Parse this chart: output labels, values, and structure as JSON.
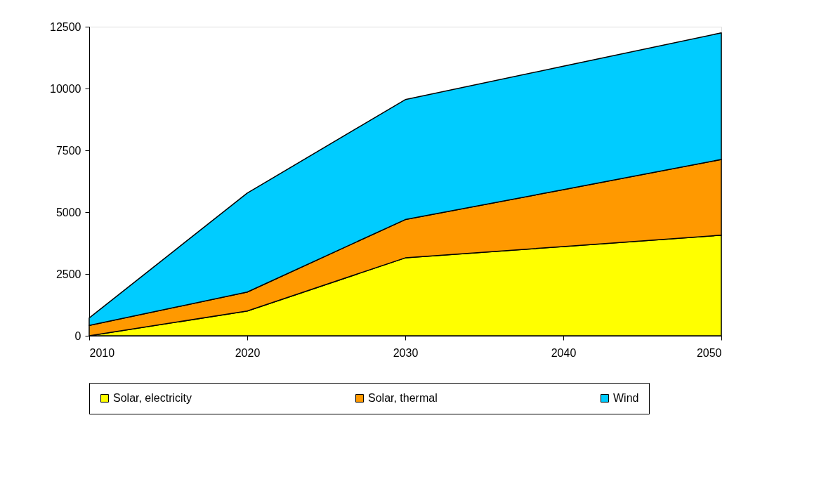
{
  "chart_data": {
    "type": "area",
    "stacked": true,
    "x": [
      2010,
      2020,
      2030,
      2040,
      2050
    ],
    "series": [
      {
        "name": "Solar, electricity",
        "color": "#ffff00",
        "values": [
          0,
          1000,
          3150,
          3610,
          4070
        ]
      },
      {
        "name": "Solar, thermal",
        "color": "#ff9900",
        "values": [
          420,
          770,
          1550,
          2300,
          3060
        ]
      },
      {
        "name": "Wind",
        "color": "#00ccff",
        "values": [
          300,
          4000,
          4850,
          4990,
          5120
        ]
      }
    ],
    "xlim": [
      2010,
      2050
    ],
    "xticks": [
      2010,
      2020,
      2030,
      2040,
      2050
    ],
    "ylim": [
      0,
      12500
    ],
    "yticks": [
      0,
      2500,
      5000,
      7500,
      10000,
      12500
    ],
    "grid": false,
    "legend": "bottom"
  }
}
